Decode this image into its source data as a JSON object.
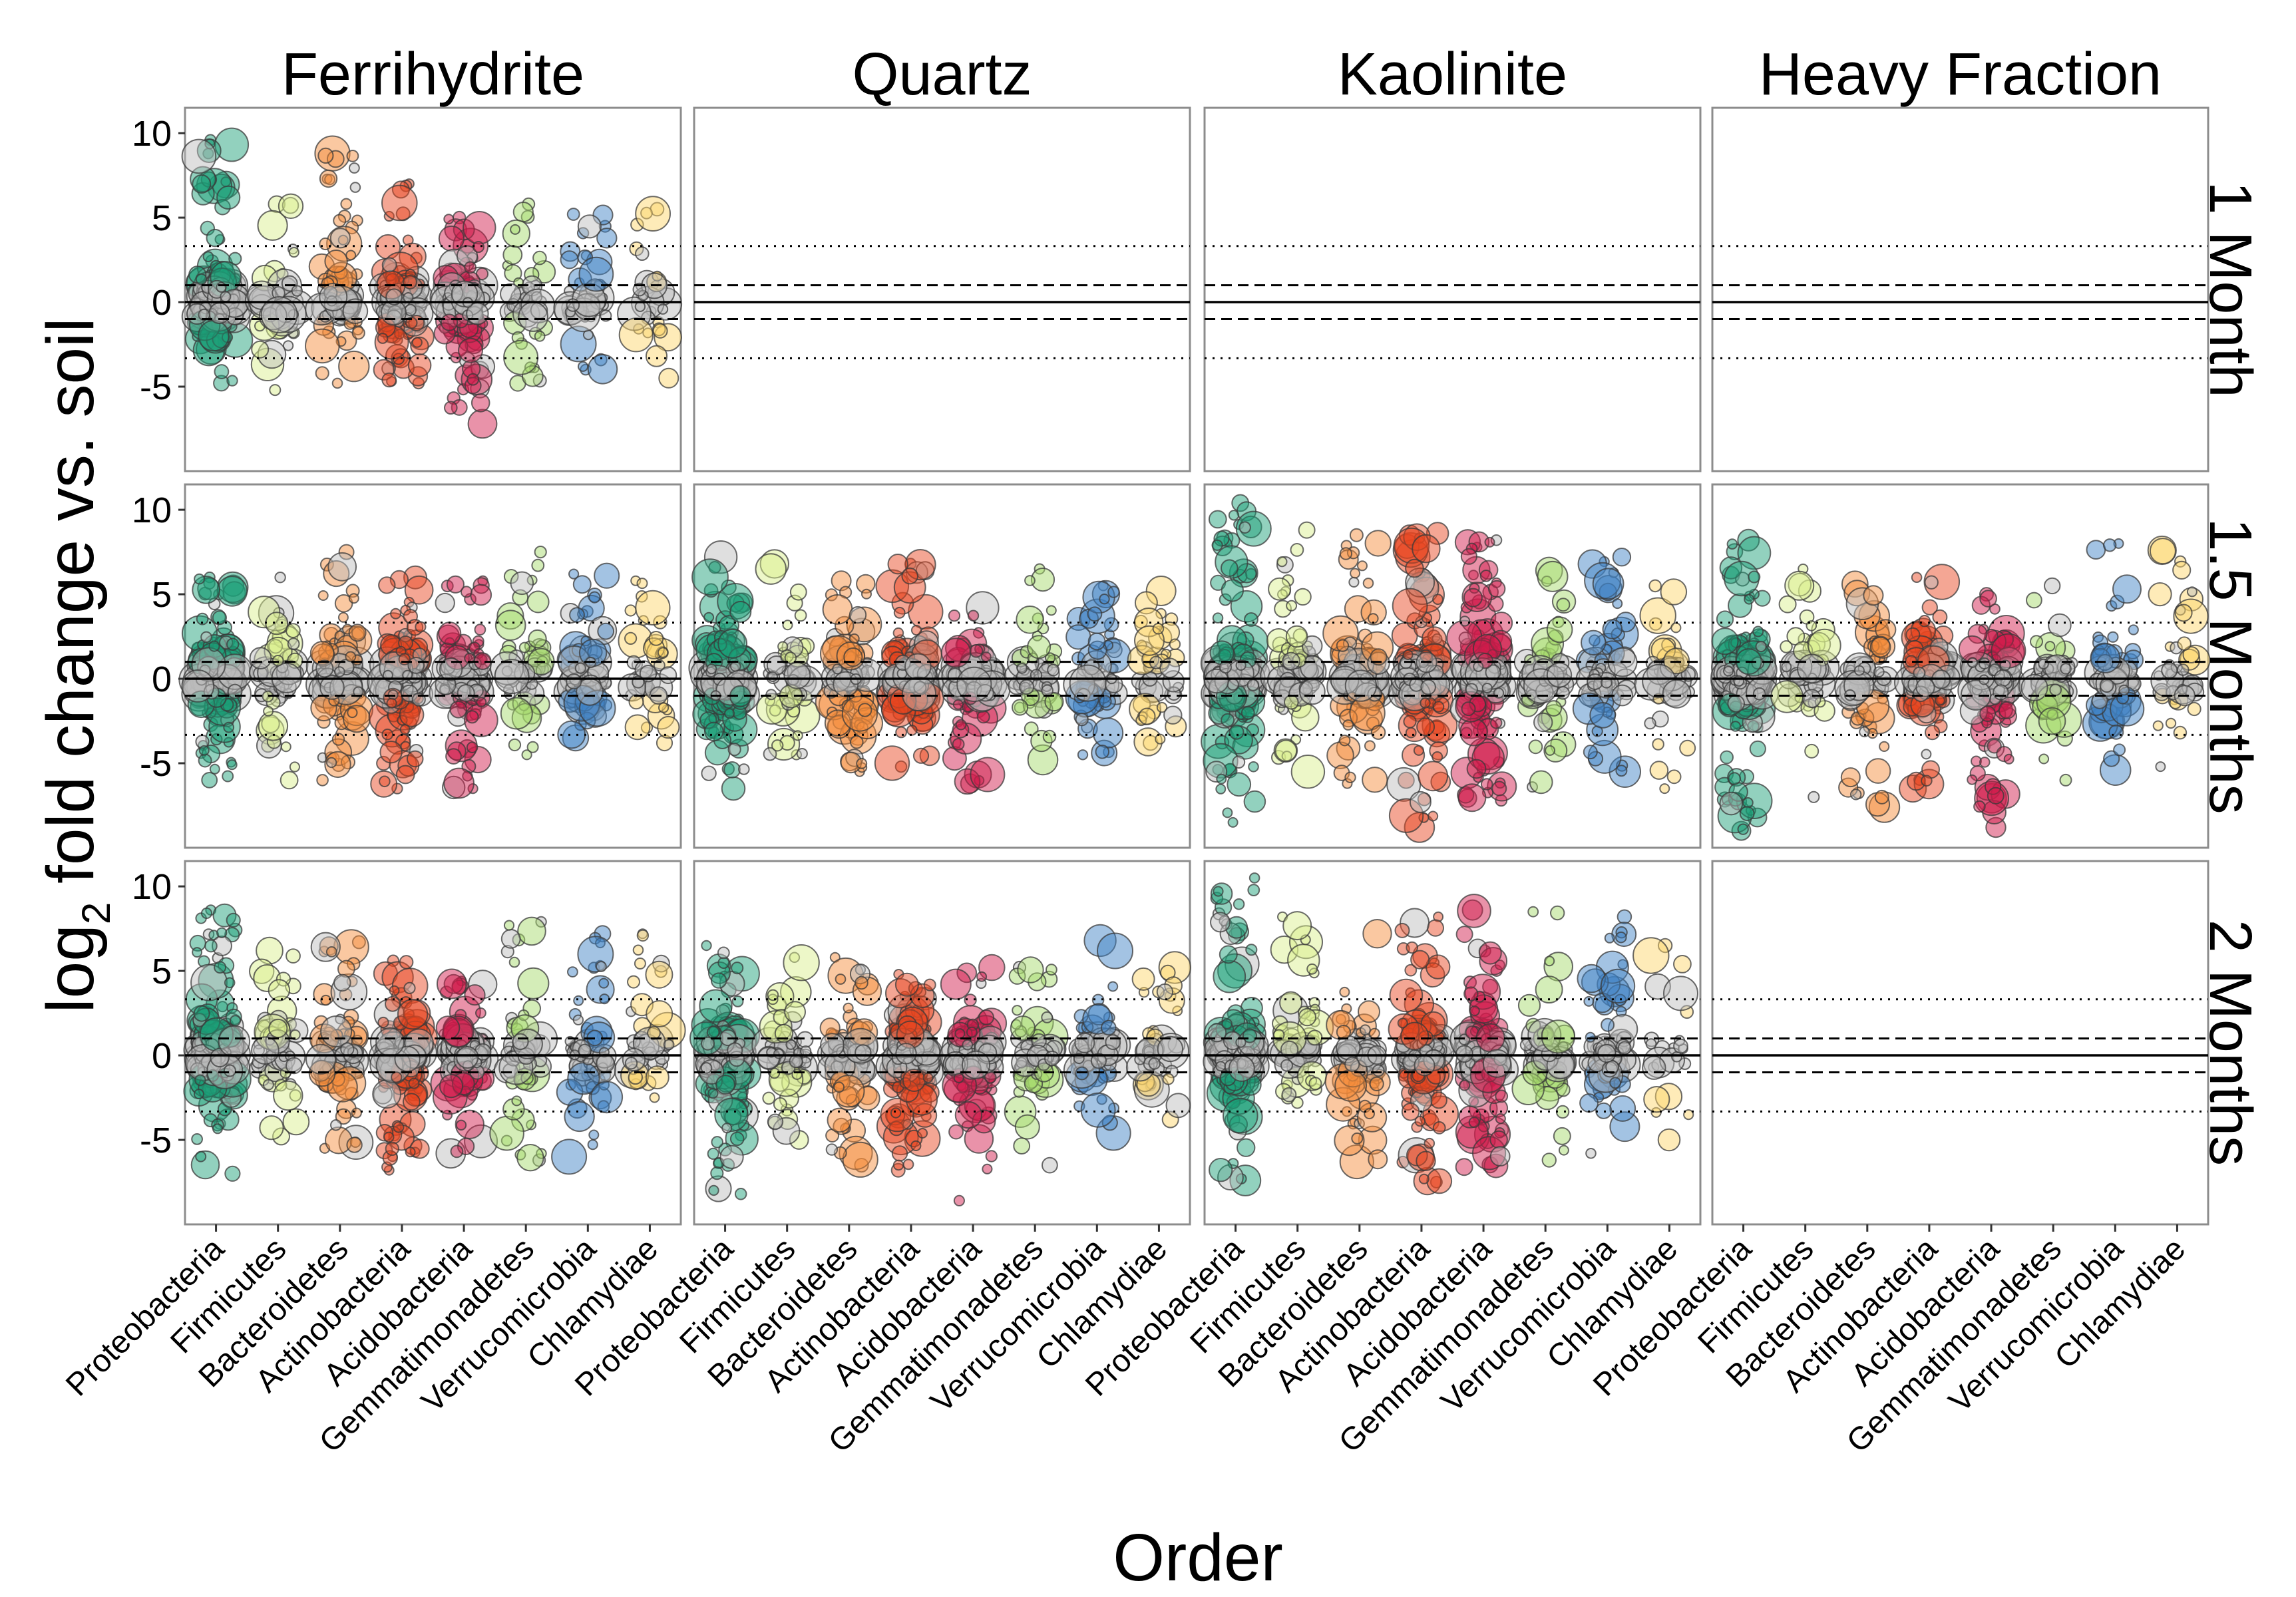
{
  "chart_data": {
    "type": "scatter",
    "subtype": "faceted jittered bubble scatter",
    "xlabel": "Order",
    "ylabel": {
      "prefix": "log",
      "subscript": "2",
      "suffix": " fold change vs. soil"
    },
    "ylim": [
      -10,
      11.5
    ],
    "yticks": [
      10,
      5,
      0,
      -5
    ],
    "reference_lines": [
      {
        "y": 0,
        "style": "solid"
      },
      {
        "y": 1,
        "style": "dashed"
      },
      {
        "y": -1,
        "style": "dashed"
      },
      {
        "y": 3.32,
        "style": "dotted"
      },
      {
        "y": -3.32,
        "style": "dotted"
      }
    ],
    "grid": false,
    "legend": "none",
    "facet_columns": [
      "Ferrihydrite",
      "Quartz",
      "Kaolinite",
      "Heavy Fraction"
    ],
    "facet_rows": [
      "1 Month",
      "1.5 Months",
      "2 Months"
    ],
    "categories": [
      "Proteobacteria",
      "Firmicutes",
      "Bacteroidetes",
      "Actinobacteria",
      "Acidobacteria",
      "Gemmatimonadetes",
      "Verrucomicrobia",
      "Chlamydiae"
    ],
    "category_colors": [
      "#1b9e77",
      "#d9ef8b",
      "#f58d3a",
      "#e8451f",
      "#d01c4b",
      "#a6d96a",
      "#3f82c4",
      "#fdd56a"
    ],
    "nonsignificant_color": "#bdbdbd",
    "panels": [
      {
        "column": "Ferrihydrite",
        "row": "1 Month",
        "has_data": true,
        "ranges": [
          [
            -4.8,
            9.6
          ],
          [
            -5.2,
            5.8
          ],
          [
            -4.8,
            8.8
          ],
          [
            -4.8,
            7
          ],
          [
            -7.2,
            5
          ],
          [
            -4.8,
            5.8
          ],
          [
            -4,
            5.2
          ],
          [
            -4.5,
            5.5
          ]
        ],
        "counts": [
          220,
          45,
          80,
          140,
          110,
          45,
          45,
          30
        ],
        "density": [
          1.0,
          0.5,
          0.7,
          0.9,
          0.9,
          0.5,
          0.6,
          0.4
        ]
      },
      {
        "column": "Quartz",
        "row": "1 Month",
        "has_data": false
      },
      {
        "column": "Kaolinite",
        "row": "1 Month",
        "has_data": false
      },
      {
        "column": "Heavy Fraction",
        "row": "1 Month",
        "has_data": false
      },
      {
        "column": "Ferrihydrite",
        "row": "1.5 Months",
        "has_data": true,
        "ranges": [
          [
            -6,
            6
          ],
          [
            -6,
            6
          ],
          [
            -6,
            7.5
          ],
          [
            -6.5,
            6
          ],
          [
            -6.5,
            5.8
          ],
          [
            -4.5,
            7.5
          ],
          [
            -3.5,
            6.2
          ],
          [
            -3.8,
            5.8
          ]
        ],
        "counts": [
          230,
          55,
          110,
          170,
          120,
          55,
          70,
          45
        ],
        "density": [
          1.0,
          0.5,
          0.7,
          0.9,
          0.9,
          0.6,
          0.7,
          0.5
        ]
      },
      {
        "column": "Quartz",
        "row": "1.5 Months",
        "has_data": true,
        "ranges": [
          [
            -6.5,
            7.2
          ],
          [
            -4.5,
            6.8
          ],
          [
            -5.5,
            5.8
          ],
          [
            -5.2,
            6.8
          ],
          [
            -6.2,
            4.2
          ],
          [
            -4.8,
            6.5
          ],
          [
            -4.5,
            5.5
          ],
          [
            -3.8,
            5.2
          ]
        ],
        "counts": [
          230,
          60,
          90,
          190,
          110,
          55,
          70,
          45
        ],
        "density": [
          1.0,
          0.6,
          0.6,
          0.9,
          0.8,
          0.5,
          0.6,
          0.5
        ]
      },
      {
        "column": "Kaolinite",
        "row": "1.5 Months",
        "has_data": true,
        "ranges": [
          [
            -8.5,
            10.4
          ],
          [
            -5.5,
            8.8
          ],
          [
            -6.2,
            8.5
          ],
          [
            -8.8,
            8.6
          ],
          [
            -7.2,
            8.2
          ],
          [
            -6.4,
            6.4
          ],
          [
            -5.5,
            7.2
          ],
          [
            -6.5,
            5.5
          ]
        ],
        "counts": [
          260,
          80,
          130,
          210,
          190,
          65,
          70,
          45
        ],
        "density": [
          1.0,
          0.7,
          0.8,
          0.9,
          0.9,
          0.6,
          0.6,
          0.5
        ]
      },
      {
        "column": "Heavy Fraction",
        "row": "1.5 Months",
        "has_data": true,
        "ranges": [
          [
            -9,
            8.2
          ],
          [
            -7,
            6.5
          ],
          [
            -7.6,
            5.6
          ],
          [
            -6.5,
            6
          ],
          [
            -8.8,
            5
          ],
          [
            -6,
            5.5
          ],
          [
            -5.4,
            8
          ],
          [
            -5.2,
            7.6
          ]
        ],
        "counts": [
          250,
          50,
          75,
          150,
          140,
          55,
          70,
          45
        ],
        "density": [
          1.0,
          0.5,
          0.6,
          0.9,
          0.9,
          0.6,
          0.6,
          0.5
        ]
      },
      {
        "column": "Ferrihydrite",
        "row": "2 Months",
        "has_data": true,
        "ranges": [
          [
            -7,
            8.6
          ],
          [
            -4.8,
            6.2
          ],
          [
            -5.5,
            6.7
          ],
          [
            -6.8,
            5.6
          ],
          [
            -5.8,
            4.4
          ],
          [
            -6.2,
            7.9
          ],
          [
            -6,
            7.2
          ],
          [
            -2.5,
            7.2
          ]
        ],
        "counts": [
          230,
          55,
          95,
          180,
          110,
          55,
          70,
          40
        ],
        "density": [
          1.0,
          0.6,
          0.8,
          0.9,
          0.9,
          0.5,
          0.6,
          0.5
        ]
      },
      {
        "column": "Quartz",
        "row": "2 Months",
        "has_data": true,
        "ranges": [
          [
            -8.2,
            6.5
          ],
          [
            -5,
            5.8
          ],
          [
            -6.5,
            5.8
          ],
          [
            -6.8,
            4.8
          ],
          [
            -8.6,
            5.2
          ],
          [
            -6.5,
            5.2
          ],
          [
            -4.6,
            6.8
          ],
          [
            -3.8,
            5.2
          ]
        ],
        "counts": [
          240,
          60,
          95,
          200,
          150,
          55,
          70,
          45
        ],
        "density": [
          1.0,
          0.6,
          0.7,
          0.9,
          0.9,
          0.5,
          0.6,
          0.5
        ]
      },
      {
        "column": "Kaolinite",
        "row": "2 Months",
        "has_data": true,
        "ranges": [
          [
            -7.4,
            10.5
          ],
          [
            -2.8,
            8.2
          ],
          [
            -6.3,
            7.2
          ],
          [
            -7.5,
            8.2
          ],
          [
            -6.6,
            8.6
          ],
          [
            -6.2,
            8.5
          ],
          [
            -5.8,
            8.2
          ],
          [
            -5,
            6.5
          ]
        ],
        "counts": [
          260,
          60,
          75,
          200,
          170,
          55,
          70,
          25
        ],
        "density": [
          1.0,
          0.7,
          0.7,
          0.9,
          0.9,
          0.6,
          0.6,
          0.4
        ]
      },
      {
        "column": "Heavy Fraction",
        "row": "2 Months",
        "has_data": false
      }
    ]
  }
}
